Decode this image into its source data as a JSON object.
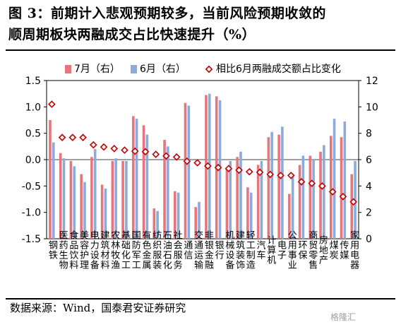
{
  "header": {
    "title_line1": "图 3：前期计入悲观预期较多，当前风险预期收敛的",
    "title_line2": "顺周期板块两融成交占比快速提升（%）"
  },
  "footer": {
    "source": "数据来源：Wind，国泰君安证券研究",
    "watermark": "格隆汇"
  },
  "chart_data": {
    "type": "bar",
    "legend_position": "top",
    "grid": false,
    "categories": [
      "钢铁",
      "医药生物",
      "食品饮料",
      "美容护理",
      "电力设备",
      "建筑材料",
      "农林牧渔",
      "基础化工",
      "国防军工",
      "有色金属",
      "纺织服装",
      "石油石化",
      "社会服务",
      "通信",
      "交通运输",
      "非银金融",
      "银行",
      "机械设备",
      "建筑装饰",
      "轻工制造",
      "汽车",
      "计算机",
      "电子",
      "公用事业",
      "环保",
      "商贸零售",
      "房地产",
      "煤炭",
      "传媒",
      "家用电器"
    ],
    "series": [
      {
        "name": "7月（右）",
        "axis": "right",
        "color": "#e8747c",
        "values": [
          9.0,
          6.5,
          5.9,
          4.9,
          6.2,
          4.1,
          5.9,
          5.9,
          9.3,
          8.6,
          2.3,
          7.5,
          3.6,
          10.3,
          2.4,
          10.9,
          10.8,
          5.4,
          6.2,
          3.9,
          5.6,
          7.7,
          7.9,
          3.4,
          5.6,
          6.3,
          6.6,
          7.8,
          7.7,
          4.9
        ]
      },
      {
        "name": "6月（右）",
        "axis": "right",
        "color": "#8ea9db",
        "values": [
          7.3,
          6.1,
          5.5,
          4.3,
          6.8,
          3.8,
          6.1,
          5.9,
          9.1,
          7.9,
          2.1,
          7.0,
          3.5,
          10.1,
          2.8,
          11.0,
          10.5,
          5.9,
          6.6,
          3.5,
          5.9,
          8.1,
          8.5,
          4.9,
          6.3,
          6.0,
          7.1,
          9.1,
          8.9,
          5.9
        ]
      },
      {
        "name": "相比6月两融成交额占比变化",
        "axis": "left",
        "color": "#c00000",
        "values": [
          1.05,
          0.42,
          0.42,
          0.42,
          0.28,
          0.24,
          0.21,
          0.18,
          0.16,
          0.15,
          0.1,
          0.07,
          0.05,
          -0.03,
          -0.06,
          -0.12,
          -0.15,
          -0.17,
          -0.2,
          -0.23,
          -0.24,
          -0.28,
          -0.3,
          -0.3,
          -0.42,
          -0.45,
          -0.5,
          -0.61,
          -0.7,
          -0.8
        ]
      }
    ],
    "ylim_left": [
      -1.5,
      1.5
    ],
    "ylim_right": [
      0,
      12
    ],
    "yticks_left": [
      "1.5",
      "1.0",
      "0.5",
      "0.0",
      "-0.5",
      "-1.0",
      "-1.5"
    ],
    "yticks_right": [
      "12",
      "10",
      "8",
      "6",
      "4",
      "2",
      "0"
    ]
  }
}
